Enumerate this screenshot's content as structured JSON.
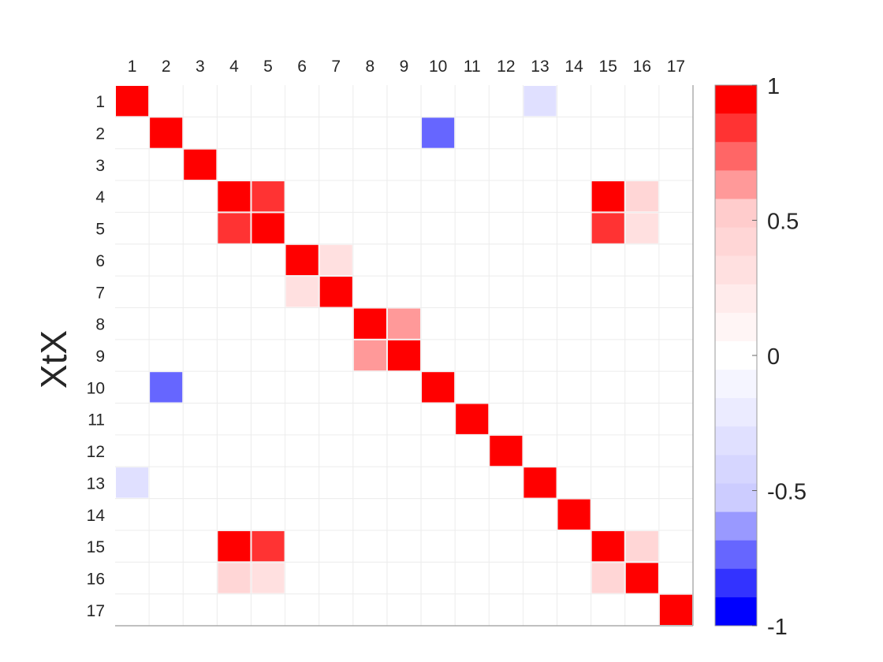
{
  "chart_data": {
    "type": "heatmap",
    "title": "",
    "xlabel": "",
    "ylabel": "XtX",
    "x_categories": [
      "1",
      "2",
      "3",
      "4",
      "5",
      "6",
      "7",
      "8",
      "9",
      "10",
      "11",
      "12",
      "13",
      "14",
      "15",
      "16",
      "17"
    ],
    "y_categories": [
      "1",
      "2",
      "3",
      "4",
      "5",
      "6",
      "7",
      "8",
      "9",
      "10",
      "11",
      "12",
      "13",
      "14",
      "15",
      "16",
      "17"
    ],
    "values": [
      [
        1,
        0,
        0,
        0,
        0,
        0,
        0,
        0,
        0,
        0,
        0,
        0,
        -0.3,
        0,
        0,
        0,
        0
      ],
      [
        0,
        1,
        0,
        0,
        0,
        0,
        0,
        0,
        0,
        -0.8,
        0,
        0,
        0,
        0,
        0,
        0,
        0
      ],
      [
        0,
        0,
        1,
        0,
        0,
        0,
        0,
        0,
        0,
        0,
        0,
        0,
        0,
        0,
        0,
        0,
        0
      ],
      [
        0,
        0,
        0,
        1,
        0.9,
        0,
        0,
        0,
        0,
        0,
        0,
        0,
        0,
        0,
        1,
        0.5,
        0
      ],
      [
        0,
        0,
        0,
        0.9,
        1,
        0,
        0,
        0,
        0,
        0,
        0,
        0,
        0,
        0,
        0.9,
        0.3,
        0
      ],
      [
        0,
        0,
        0,
        0,
        0,
        1,
        0.3,
        0,
        0,
        0,
        0,
        0,
        0,
        0,
        0,
        0,
        0
      ],
      [
        0,
        0,
        0,
        0,
        0,
        0.3,
        1,
        0,
        0,
        0,
        0,
        0,
        0,
        0,
        0,
        0,
        0
      ],
      [
        0,
        0,
        0,
        0,
        0,
        0,
        0,
        1,
        0.7,
        0,
        0,
        0,
        0,
        0,
        0,
        0,
        0
      ],
      [
        0,
        0,
        0,
        0,
        0,
        0,
        0,
        0.7,
        1,
        0,
        0,
        0,
        0,
        0,
        0,
        0,
        0
      ],
      [
        0,
        -0.8,
        0,
        0,
        0,
        0,
        0,
        0,
        0,
        1,
        0,
        0,
        0,
        0,
        0,
        0,
        0
      ],
      [
        0,
        0,
        0,
        0,
        0,
        0,
        0,
        0,
        0,
        0,
        1,
        0,
        0,
        0,
        0,
        0,
        0
      ],
      [
        0,
        0,
        0,
        0,
        0,
        0,
        0,
        0,
        0,
        0,
        0,
        1,
        0,
        0,
        0,
        0,
        0
      ],
      [
        -0.3,
        0,
        0,
        0,
        0,
        0,
        0,
        0,
        0,
        0,
        0,
        0,
        1,
        0,
        0,
        0,
        0
      ],
      [
        0,
        0,
        0,
        0,
        0,
        0,
        0,
        0,
        0,
        0,
        0,
        0,
        0,
        1,
        0,
        0,
        0
      ],
      [
        0,
        0,
        0,
        1,
        0.9,
        0,
        0,
        0,
        0,
        0,
        0,
        0,
        0,
        0,
        1,
        0.5,
        0
      ],
      [
        0,
        0,
        0,
        0.5,
        0.3,
        0,
        0,
        0,
        0,
        0,
        0,
        0,
        0,
        0,
        0.5,
        1,
        0
      ],
      [
        0,
        0,
        0,
        0,
        0,
        0,
        0,
        0,
        0,
        0,
        0,
        0,
        0,
        0,
        0,
        0,
        1
      ]
    ],
    "color_range": [
      -1,
      1
    ],
    "colorbar": {
      "ticks": [
        1,
        0.5,
        0,
        -0.5,
        -1
      ],
      "tick_labels": [
        "1",
        "0.5",
        "0",
        "-0.5",
        "-1"
      ],
      "colors_top_to_bottom": [
        "#ff0000",
        "#ff3333",
        "#ff6666",
        "#ff9999",
        "#ffcccc",
        "#ffd6d6",
        "#ffe0e0",
        "#ffebeb",
        "#fff5f5",
        "#ffffff",
        "#f5f5ff",
        "#ebebff",
        "#e0e0ff",
        "#d6d6ff",
        "#ccccff",
        "#9999ff",
        "#6666ff",
        "#3333ff",
        "#0000ff"
      ]
    },
    "x_axis_position": "top",
    "grid": true,
    "legend": "colorbar-right"
  }
}
